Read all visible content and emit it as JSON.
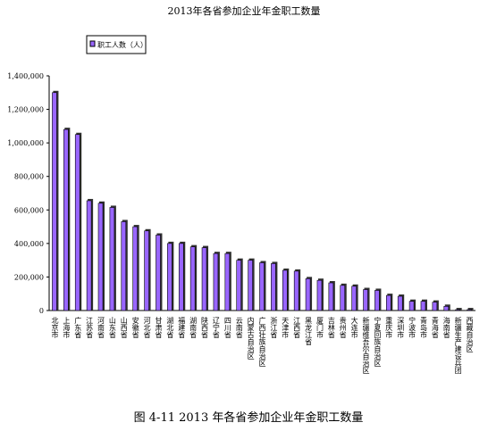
{
  "chart_data": {
    "type": "bar",
    "title": "2013年各省参加企业年金职工数量",
    "categories": [
      "北京市",
      "上海市",
      "广东省",
      "江苏省",
      "河南省",
      "山东省",
      "山西省",
      "安徽省",
      "河北省",
      "甘肃省",
      "湖北省",
      "福建省",
      "湖南省",
      "陕西省",
      "辽宁省",
      "四川省",
      "云南省",
      "内蒙古自治区",
      "广西壮族自治区",
      "浙江省",
      "天津市",
      "江西省",
      "黑龙江省",
      "厦门市",
      "吉林省",
      "贵州省",
      "大连市",
      "新疆维吾尔自治区",
      "宁夏回族自治区",
      "重庆市",
      "深圳市",
      "宁波市",
      "青岛市",
      "青海省",
      "海南省",
      "新疆生产建设兵团",
      "西藏自治区"
    ],
    "series": [
      {
        "name": "职工人数（人）",
        "color": "#9966ff",
        "values": [
          1300000,
          1080000,
          1050000,
          655000,
          640000,
          615000,
          530000,
          500000,
          475000,
          450000,
          400000,
          400000,
          380000,
          375000,
          340000,
          340000,
          300000,
          300000,
          285000,
          280000,
          240000,
          235000,
          190000,
          180000,
          165000,
          150000,
          145000,
          125000,
          120000,
          90000,
          85000,
          55000,
          55000,
          50000,
          25000,
          5000,
          5000
        ]
      }
    ],
    "ylim": [
      0,
      1400000
    ],
    "yticks": [
      0,
      {
        "value": 200000,
        "label": "200,000"
      },
      {
        "value": 400000,
        "label": "400,000"
      },
      {
        "value": 600000,
        "label": "600,000"
      },
      {
        "value": 800000,
        "label": "800,000"
      },
      {
        "value": 1000000,
        "label": "1,000,000"
      },
      {
        "value": 1200000,
        "label": "1,200,000"
      },
      {
        "value": 1400000,
        "label": "1,400,000"
      }
    ],
    "legend": "top-left"
  },
  "caption": "图 4-11 2013 年各省参加企业年金职工数量"
}
